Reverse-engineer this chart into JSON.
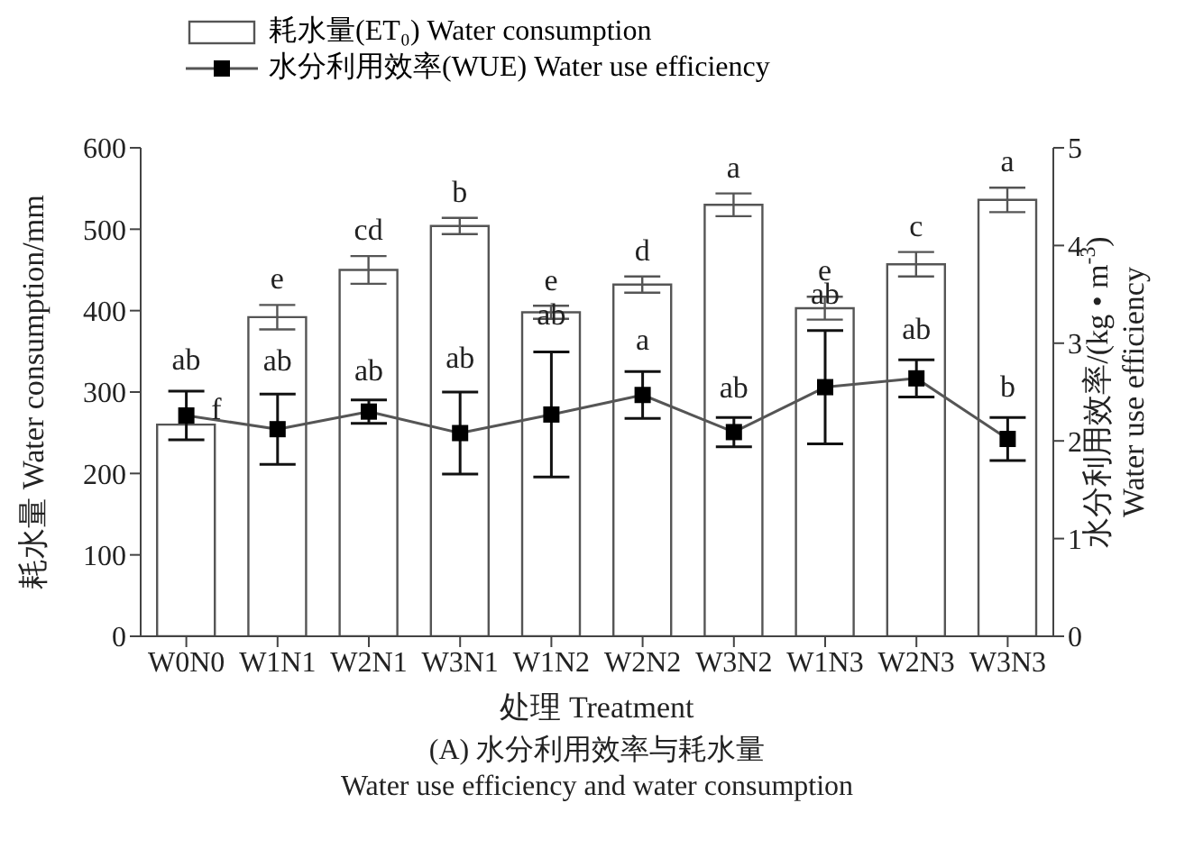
{
  "chart_data": {
    "type": "bar",
    "title": "(A) 水分利用效率与耗水量",
    "subtitle": "Water use efficiency and water consumption",
    "xlabel": "处理 Treatment",
    "ylabel": "耗水量 Water consumption/mm",
    "y2label": "水分利用效率/(kg • m$^{-3}$)\nWater use efficiency",
    "categories": [
      "W0N0",
      "W1N1",
      "W2N1",
      "W3N1",
      "W1N2",
      "W2N2",
      "W3N2",
      "W1N3",
      "W2N3",
      "W3N3"
    ],
    "series": [
      {
        "name": "耗水量(ET₀) Water consumption",
        "color": "#ffffff",
        "values": [
          260,
          392,
          450,
          504,
          398,
          432,
          530,
          403,
          457,
          536
        ],
        "errors": [
          null,
          15,
          17,
          10,
          8,
          10,
          14,
          14,
          15,
          15
        ],
        "value_labels": [
          "f",
          "e",
          "cd",
          "b",
          "e",
          "d",
          "a",
          "e",
          "c",
          "a"
        ]
      },
      {
        "name": "水分利用效率(WUE) Water use efficiency",
        "type": "line",
        "axis": "y2",
        "color": "#000000",
        "values": [
          2.26,
          2.12,
          2.3,
          2.08,
          2.27,
          2.47,
          2.09,
          2.55,
          2.64,
          2.02
        ],
        "errors": [
          0.25,
          0.36,
          0.12,
          0.42,
          0.64,
          0.24,
          0.15,
          0.58,
          0.19,
          0.22
        ],
        "value_labels": [
          "ab",
          "ab",
          "ab",
          "ab",
          "ab",
          "a",
          "ab",
          "ab",
          "ab",
          "b"
        ]
      }
    ],
    "ylim": [
      0,
      600
    ],
    "yticks": [
      0,
      100,
      200,
      300,
      400,
      500,
      600
    ],
    "y2lim": [
      0,
      5
    ],
    "y2ticks": [
      0,
      1,
      2,
      3,
      4,
      5
    ],
    "grid": false,
    "legend": "top left",
    "marker": "square",
    "line_style": "solid"
  }
}
